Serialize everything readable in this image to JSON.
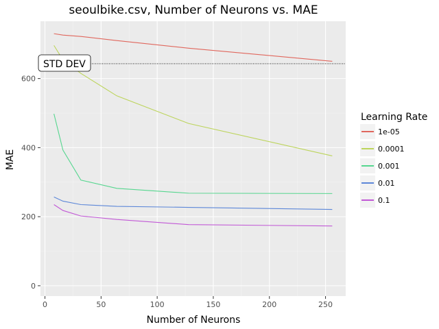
{
  "chart_data": {
    "type": "line",
    "title": "seoulbike.csv, Number of Neurons vs. MAE",
    "xlabel": "Number of Neurons",
    "ylabel": "MAE",
    "xlim": [
      -4,
      268
    ],
    "ylim": [
      -30,
      766
    ],
    "x_ticks": [
      0,
      50,
      100,
      150,
      200,
      250
    ],
    "y_ticks": [
      0,
      200,
      400,
      600
    ],
    "grid": true,
    "legend_title": "Learning Rate",
    "legend_position": "right",
    "x": [
      8,
      16,
      32,
      64,
      128,
      256
    ],
    "series": [
      {
        "name": "1e-05",
        "color": "#e0665c",
        "values": [
          730,
          726,
          722,
          710,
          688,
          650
        ]
      },
      {
        "name": "0.0001",
        "color": "#bcd45a",
        "values": [
          696,
          654,
          615,
          550,
          470,
          376
        ]
      },
      {
        "name": "0.001",
        "color": "#55d68e",
        "values": [
          498,
          393,
          306,
          282,
          268,
          267
        ]
      },
      {
        "name": "0.01",
        "color": "#5b86d8",
        "values": [
          257,
          245,
          235,
          230,
          227,
          221
        ]
      },
      {
        "name": "0.1",
        "color": "#c157d6",
        "values": [
          235,
          218,
          202,
          192,
          177,
          173
        ]
      }
    ],
    "annotations": [
      {
        "type": "hline",
        "y": 643,
        "style": "dotted",
        "label": "STD DEV"
      }
    ]
  }
}
